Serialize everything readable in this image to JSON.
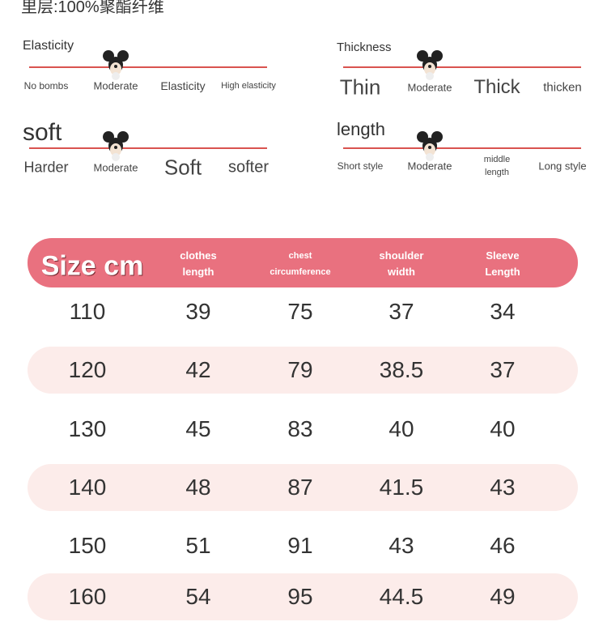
{
  "fabric_note": "里层:100%聚酯纤维",
  "scales": [
    {
      "title": "Elasticity",
      "levels": [
        "No bombs",
        "Moderate",
        "Elasticity",
        "High elasticity"
      ]
    },
    {
      "title": "Thickness",
      "levels": [
        "Thin",
        "Moderate",
        "Thick",
        "thicken"
      ]
    },
    {
      "title": "soft",
      "levels": [
        "Harder",
        "Moderate",
        "Soft",
        "softer"
      ]
    },
    {
      "title": "length",
      "levels": [
        "Short style",
        "Moderate",
        "middle length",
        "Long style"
      ]
    }
  ],
  "table": {
    "header": [
      "Size cm",
      "clothes length",
      "chest circumference",
      "shoulder width",
      "Sleeve Length"
    ],
    "rows": [
      [
        110,
        39,
        75,
        37,
        34
      ],
      [
        120,
        42,
        79,
        38.5,
        37
      ],
      [
        130,
        45,
        83,
        40,
        40
      ],
      [
        140,
        48,
        87,
        41.5,
        43
      ],
      [
        150,
        51,
        91,
        43,
        46
      ],
      [
        160,
        54,
        95,
        44.5,
        49
      ]
    ]
  }
}
